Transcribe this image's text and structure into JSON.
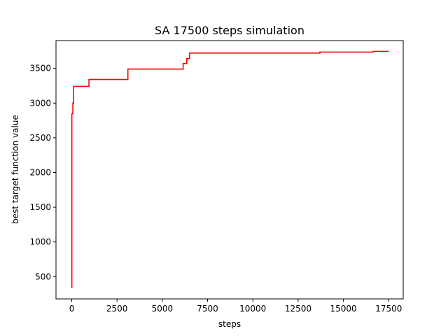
{
  "chart_data": {
    "type": "line",
    "title": "SA 17500 steps simulation",
    "xlabel": "steps",
    "ylabel": "best target function value",
    "xlim": [
      -870,
      18300
    ],
    "ylim": [
      180,
      3900
    ],
    "xticks": [
      0,
      2500,
      5000,
      7500,
      10000,
      12500,
      15000,
      17500
    ],
    "xtick_labels": [
      "0",
      "2500",
      "5000",
      "7500",
      "10000",
      "12500",
      "15000",
      "17500"
    ],
    "yticks": [
      500,
      1000,
      1500,
      2000,
      2500,
      3000,
      3500
    ],
    "ytick_labels": [
      "500",
      "1000",
      "1500",
      "2000",
      "2500",
      "3000",
      "3500"
    ],
    "grid": false,
    "series": [
      {
        "color": "#ff0000",
        "step": true,
        "x": [
          0,
          5,
          15,
          30,
          60,
          80,
          100,
          950,
          3100,
          6150,
          6350,
          6500,
          13700,
          16650,
          17500
        ],
        "y": [
          340,
          2840,
          2850,
          2850,
          3000,
          3000,
          3240,
          3340,
          3490,
          3570,
          3640,
          3720,
          3735,
          3745,
          3745
        ]
      }
    ]
  }
}
